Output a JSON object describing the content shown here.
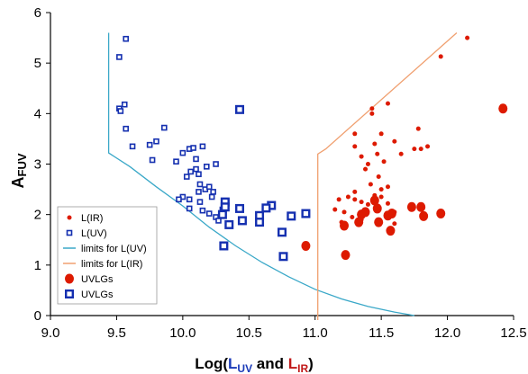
{
  "chart_data": {
    "type": "scatter",
    "title": "",
    "xlabel": {
      "prefix": "Log(",
      "uv": "L",
      "uv_sub": "UV",
      "mid": " and ",
      "ir": "L",
      "ir_sub": "IR",
      "suffix": ")"
    },
    "ylabel": {
      "main": "A",
      "sub": "FUV"
    },
    "xlim": [
      9.0,
      12.5
    ],
    "ylim": [
      0,
      6
    ],
    "xticks": [
      "9.0",
      "9.5",
      "10.0",
      "10.5",
      "11.0",
      "11.5",
      "12.0",
      "12.5"
    ],
    "yticks": [
      "0",
      "1",
      "2",
      "3",
      "4",
      "5",
      "6"
    ],
    "legend_position": "bottom-left",
    "colors": {
      "ir": "#dd1a00",
      "uv": "#1530b0",
      "limit_uv": "#3aa8c8",
      "limit_ir": "#f0a070",
      "ir_label": "#c01818",
      "uv_label": "#1a3ab8"
    },
    "series": [
      {
        "name": "L(IR)",
        "marker": "small-dot",
        "color": "#dd1a00",
        "points": [
          [
            12.15,
            5.5
          ],
          [
            11.95,
            5.13
          ],
          [
            11.55,
            4.2
          ],
          [
            11.43,
            4.1
          ],
          [
            11.43,
            4.0
          ],
          [
            11.3,
            3.6
          ],
          [
            11.5,
            3.6
          ],
          [
            11.78,
            3.7
          ],
          [
            11.3,
            3.35
          ],
          [
            11.45,
            3.4
          ],
          [
            11.6,
            3.45
          ],
          [
            11.75,
            3.3
          ],
          [
            11.8,
            3.3
          ],
          [
            11.85,
            3.35
          ],
          [
            11.35,
            3.15
          ],
          [
            11.47,
            3.2
          ],
          [
            11.65,
            3.2
          ],
          [
            11.4,
            3.0
          ],
          [
            11.52,
            3.05
          ],
          [
            11.48,
            2.75
          ],
          [
            11.38,
            2.9
          ],
          [
            11.42,
            2.6
          ],
          [
            11.5,
            2.5
          ],
          [
            11.55,
            2.55
          ],
          [
            11.3,
            2.45
          ],
          [
            11.25,
            2.35
          ],
          [
            11.18,
            2.3
          ],
          [
            11.3,
            2.3
          ],
          [
            11.35,
            2.25
          ],
          [
            11.45,
            2.38
          ],
          [
            11.5,
            2.35
          ],
          [
            11.4,
            2.2
          ],
          [
            11.55,
            2.22
          ],
          [
            11.22,
            2.05
          ],
          [
            11.28,
            1.95
          ],
          [
            11.6,
            2.05
          ],
          [
            11.15,
            2.1
          ],
          [
            11.35,
            1.9
          ],
          [
            11.6,
            1.82
          ],
          [
            11.2,
            1.85
          ]
        ]
      },
      {
        "name": "L(UV)",
        "marker": "small-square",
        "color": "#1530b0",
        "points": [
          [
            9.57,
            5.48
          ],
          [
            9.52,
            5.12
          ],
          [
            9.56,
            4.18
          ],
          [
            9.52,
            4.1
          ],
          [
            9.53,
            4.05
          ],
          [
            9.57,
            3.7
          ],
          [
            9.62,
            3.35
          ],
          [
            9.75,
            3.38
          ],
          [
            9.8,
            3.45
          ],
          [
            9.86,
            3.72
          ],
          [
            9.77,
            3.08
          ],
          [
            9.95,
            3.05
          ],
          [
            10.0,
            3.22
          ],
          [
            10.05,
            3.3
          ],
          [
            10.08,
            3.32
          ],
          [
            10.15,
            3.35
          ],
          [
            10.1,
            3.1
          ],
          [
            10.06,
            2.85
          ],
          [
            10.12,
            2.8
          ],
          [
            10.1,
            2.9
          ],
          [
            10.18,
            2.95
          ],
          [
            10.25,
            3.0
          ],
          [
            10.03,
            2.75
          ],
          [
            10.13,
            2.6
          ],
          [
            10.17,
            2.5
          ],
          [
            10.12,
            2.45
          ],
          [
            10.2,
            2.55
          ],
          [
            10.23,
            2.45
          ],
          [
            10.22,
            2.35
          ],
          [
            10.0,
            2.35
          ],
          [
            10.05,
            2.3
          ],
          [
            10.13,
            2.25
          ],
          [
            10.05,
            2.12
          ],
          [
            9.97,
            2.3
          ],
          [
            10.15,
            2.08
          ],
          [
            10.2,
            2.02
          ],
          [
            10.25,
            1.95
          ],
          [
            10.3,
            2.1
          ],
          [
            10.33,
            2.25
          ],
          [
            10.27,
            1.88
          ]
        ]
      },
      {
        "name": "limits for L(UV)",
        "line": true,
        "color": "#3aa8c8",
        "points": [
          [
            9.44,
            5.6
          ],
          [
            9.44,
            3.22
          ],
          [
            9.6,
            2.95
          ],
          [
            9.8,
            2.55
          ],
          [
            10.0,
            2.17
          ],
          [
            10.2,
            1.75
          ],
          [
            10.4,
            1.38
          ],
          [
            10.6,
            1.05
          ],
          [
            10.8,
            0.77
          ],
          [
            11.0,
            0.52
          ],
          [
            11.2,
            0.33
          ],
          [
            11.4,
            0.18
          ],
          [
            11.6,
            0.07
          ],
          [
            11.75,
            0.0
          ]
        ]
      },
      {
        "name": "limits for L(IR)",
        "line": true,
        "color": "#f0a070",
        "points": [
          [
            11.02,
            -0.1
          ],
          [
            11.02,
            3.2
          ],
          [
            11.08,
            3.3
          ],
          [
            12.07,
            5.6
          ]
        ]
      },
      {
        "name": "UVLGs",
        "marker": "large-dot",
        "color": "#dd1a00",
        "points": [
          [
            12.42,
            4.1
          ],
          [
            11.95,
            2.02
          ],
          [
            11.8,
            2.15
          ],
          [
            11.82,
            1.97
          ],
          [
            11.73,
            2.15
          ],
          [
            11.58,
            2.02
          ],
          [
            11.55,
            1.98
          ],
          [
            11.57,
            1.68
          ],
          [
            11.47,
            2.12
          ],
          [
            11.45,
            2.28
          ],
          [
            11.48,
            1.85
          ],
          [
            11.38,
            2.05
          ],
          [
            11.35,
            2.0
          ],
          [
            11.33,
            1.85
          ],
          [
            11.22,
            1.78
          ],
          [
            11.23,
            1.2
          ],
          [
            10.93,
            1.38
          ]
        ]
      },
      {
        "name": "UVLGs",
        "marker": "large-square",
        "color": "#1530b0",
        "points": [
          [
            10.43,
            4.08
          ],
          [
            10.93,
            2.02
          ],
          [
            10.82,
            1.97
          ],
          [
            10.67,
            2.18
          ],
          [
            10.63,
            2.13
          ],
          [
            10.58,
            1.98
          ],
          [
            10.58,
            1.85
          ],
          [
            10.45,
            1.88
          ],
          [
            10.43,
            2.12
          ],
          [
            10.35,
            1.8
          ],
          [
            10.32,
            2.25
          ],
          [
            10.3,
            2.0
          ],
          [
            10.32,
            2.15
          ],
          [
            10.75,
            1.65
          ],
          [
            10.76,
            1.17
          ],
          [
            10.31,
            1.38
          ]
        ]
      }
    ],
    "legend": [
      "L(IR)",
      "L(UV)",
      "limits for L(UV)",
      "limits for L(IR)",
      "UVLGs",
      "UVLGs"
    ]
  }
}
